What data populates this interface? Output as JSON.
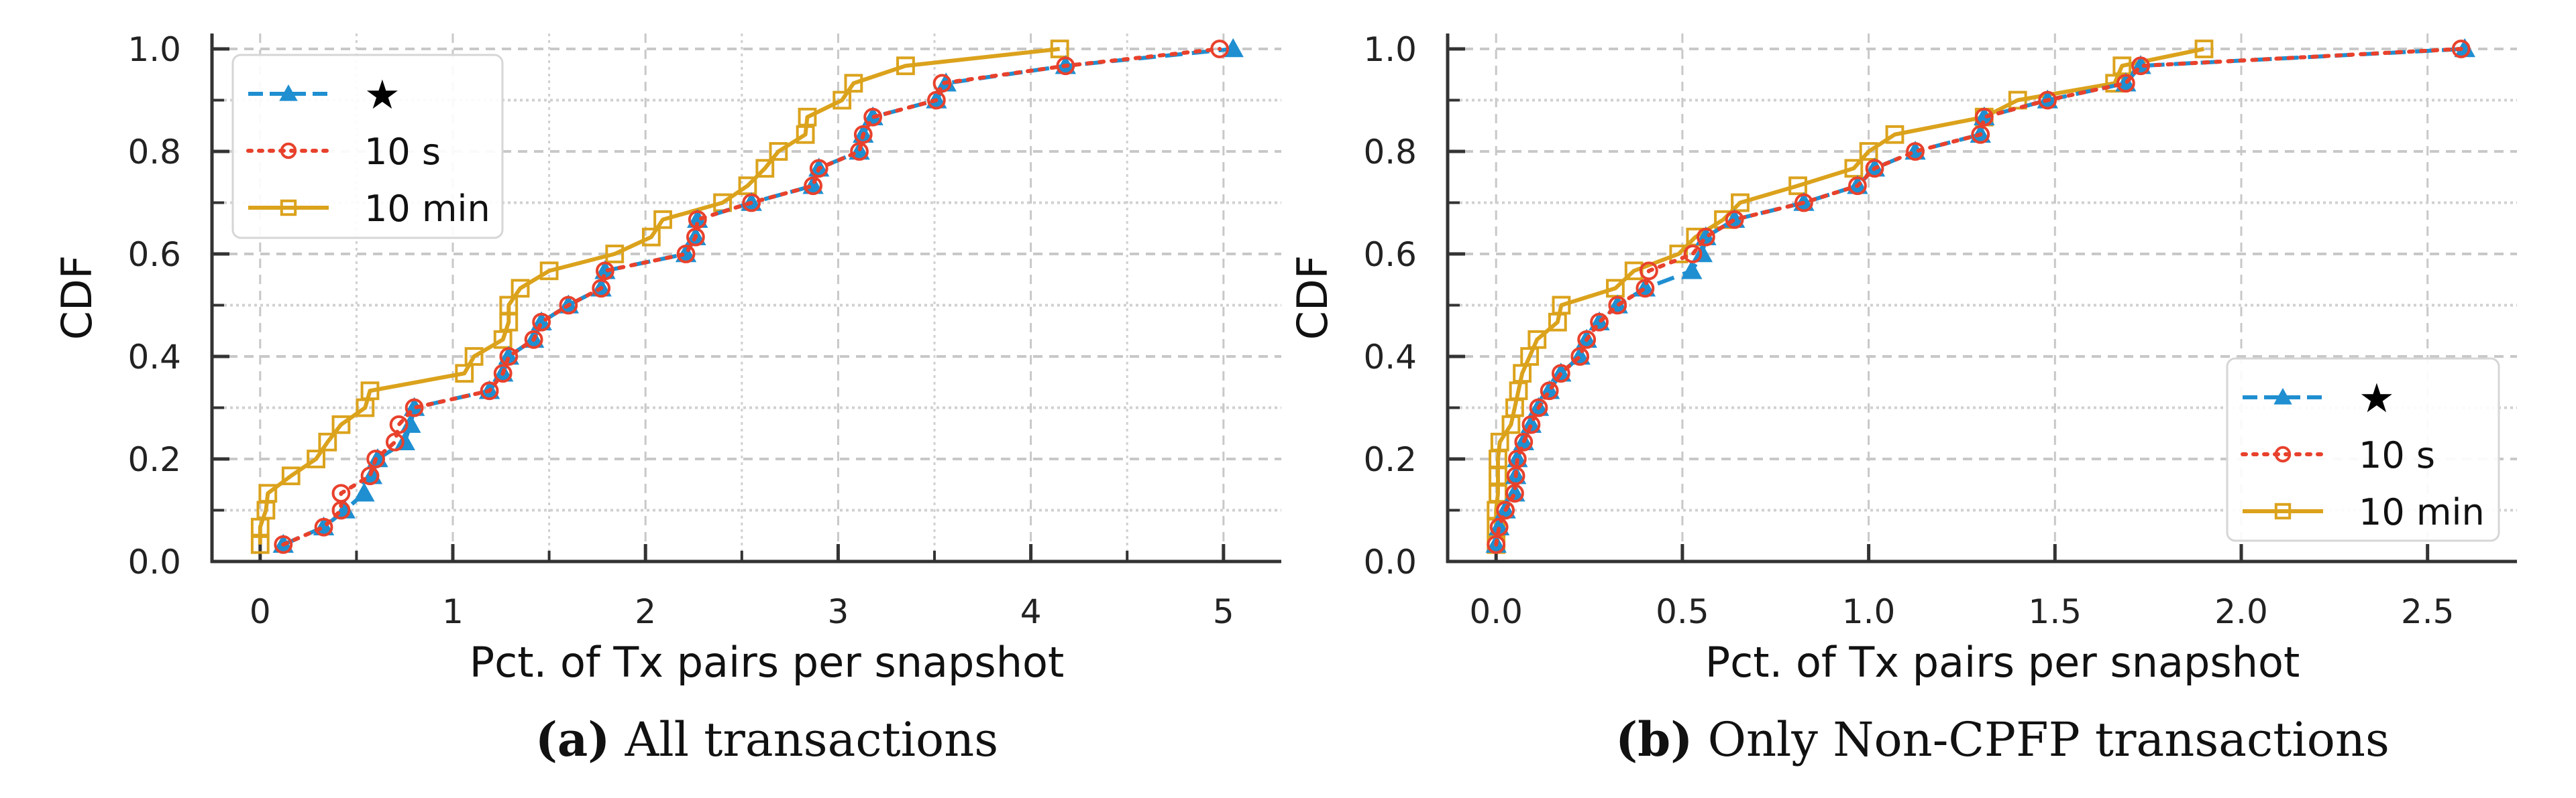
{
  "chart_data": [
    {
      "type": "line",
      "id": "a",
      "caption_bold": "(a)",
      "caption_text": " All transactions",
      "xlabel": "Pct. of Tx pairs per snapshot",
      "ylabel": "CDF",
      "xlim": [
        -0.25,
        5.3
      ],
      "ylim": [
        0.0,
        1.0
      ],
      "xticks": [
        0,
        1,
        2,
        3,
        4,
        5
      ],
      "xtick_labels": [
        "0",
        "1",
        "2",
        "3",
        "4",
        "5"
      ],
      "xminor": [
        0.5,
        1.5,
        2.5,
        3.5,
        4.5
      ],
      "yticks": [
        0.0,
        0.2,
        0.4,
        0.6,
        0.8,
        1.0
      ],
      "ytick_labels": [
        "0.0",
        "0.2",
        "0.4",
        "0.6",
        "0.8",
        "1.0"
      ],
      "yminor": [
        0.1,
        0.3,
        0.5,
        0.7,
        0.9
      ],
      "grid": true,
      "legend_position": "top-left",
      "series": [
        {
          "name": "★",
          "color": "#1f8fd1",
          "linestyle": "dashed",
          "marker": "triangle",
          "x": [
            0.12,
            0.33,
            0.44,
            0.54,
            0.58,
            0.61,
            0.75,
            0.78,
            0.8,
            1.19,
            1.26,
            1.29,
            1.42,
            1.46,
            1.6,
            1.77,
            1.79,
            2.21,
            2.26,
            2.27,
            2.55,
            2.87,
            2.9,
            3.11,
            3.13,
            3.18,
            3.51,
            3.56,
            4.18,
            5.05
          ],
          "y": [
            0.033,
            0.067,
            0.1,
            0.133,
            0.167,
            0.2,
            0.233,
            0.267,
            0.3,
            0.333,
            0.367,
            0.4,
            0.433,
            0.467,
            0.5,
            0.533,
            0.567,
            0.6,
            0.633,
            0.667,
            0.7,
            0.733,
            0.767,
            0.8,
            0.833,
            0.867,
            0.9,
            0.933,
            0.967,
            1.0
          ]
        },
        {
          "name": "10 s",
          "color": "#e8412c",
          "linestyle": "dotted",
          "marker": "circle",
          "x": [
            0.12,
            0.33,
            0.42,
            0.42,
            0.57,
            0.6,
            0.7,
            0.72,
            0.8,
            1.19,
            1.26,
            1.29,
            1.42,
            1.46,
            1.6,
            1.77,
            1.79,
            2.21,
            2.26,
            2.27,
            2.55,
            2.87,
            2.9,
            3.11,
            3.13,
            3.18,
            3.51,
            3.54,
            4.18,
            4.98
          ],
          "y": [
            0.033,
            0.067,
            0.1,
            0.133,
            0.167,
            0.2,
            0.233,
            0.267,
            0.3,
            0.333,
            0.367,
            0.4,
            0.433,
            0.467,
            0.5,
            0.533,
            0.567,
            0.6,
            0.633,
            0.667,
            0.7,
            0.733,
            0.767,
            0.8,
            0.833,
            0.867,
            0.9,
            0.933,
            0.967,
            1.0
          ]
        },
        {
          "name": "10 min",
          "color": "#dba21c",
          "linestyle": "solid",
          "marker": "square",
          "x": [
            0.0,
            0.0,
            0.03,
            0.04,
            0.16,
            0.29,
            0.35,
            0.42,
            0.545,
            0.57,
            1.06,
            1.11,
            1.26,
            1.29,
            1.29,
            1.35,
            1.5,
            1.84,
            2.03,
            2.09,
            2.4,
            2.53,
            2.62,
            2.69,
            2.83,
            2.84,
            3.02,
            3.08,
            3.35,
            4.15
          ],
          "y": [
            0.033,
            0.067,
            0.1,
            0.133,
            0.167,
            0.2,
            0.233,
            0.267,
            0.3,
            0.333,
            0.367,
            0.4,
            0.433,
            0.467,
            0.5,
            0.533,
            0.567,
            0.6,
            0.633,
            0.667,
            0.7,
            0.733,
            0.767,
            0.8,
            0.833,
            0.867,
            0.9,
            0.933,
            0.967,
            1.0
          ]
        }
      ]
    },
    {
      "type": "line",
      "id": "b",
      "caption_bold": "(b)",
      "caption_text": " Only Non-CPFP transactions",
      "xlabel": "Pct. of Tx pairs per snapshot",
      "ylabel": "CDF",
      "xlim": [
        -0.13,
        2.74
      ],
      "ylim": [
        0.0,
        1.0
      ],
      "xticks": [
        0.0,
        0.5,
        1.0,
        1.5,
        2.0,
        2.5
      ],
      "xtick_labels": [
        "0.0",
        "0.5",
        "1.0",
        "1.5",
        "2.0",
        "2.5"
      ],
      "xminor": [],
      "yticks": [
        0.0,
        0.2,
        0.4,
        0.6,
        0.8,
        1.0
      ],
      "ytick_labels": [
        "0.0",
        "0.2",
        "0.4",
        "0.6",
        "0.8",
        "1.0"
      ],
      "yminor": [
        0.1,
        0.3,
        0.5,
        0.7,
        0.9
      ],
      "grid": true,
      "legend_position": "bottom-right",
      "series": [
        {
          "name": "★",
          "color": "#1f8fd1",
          "linestyle": "dashed",
          "marker": "triangle",
          "x": [
            0.0,
            0.008,
            0.025,
            0.05,
            0.053,
            0.057,
            0.074,
            0.094,
            0.114,
            0.143,
            0.174,
            0.225,
            0.243,
            0.277,
            0.326,
            0.4,
            0.525,
            0.553,
            0.563,
            0.64,
            0.826,
            0.97,
            1.016,
            1.125,
            1.3,
            1.31,
            1.48,
            1.69,
            1.73,
            2.6
          ],
          "y": [
            0.033,
            0.067,
            0.1,
            0.133,
            0.167,
            0.2,
            0.233,
            0.267,
            0.3,
            0.333,
            0.367,
            0.4,
            0.433,
            0.467,
            0.5,
            0.533,
            0.567,
            0.6,
            0.633,
            0.667,
            0.7,
            0.733,
            0.767,
            0.8,
            0.833,
            0.867,
            0.9,
            0.933,
            0.967,
            1.0
          ]
        },
        {
          "name": "10 s",
          "color": "#e8412c",
          "linestyle": "dotted",
          "marker": "circle",
          "x": [
            0.0,
            0.008,
            0.025,
            0.05,
            0.053,
            0.057,
            0.074,
            0.094,
            0.114,
            0.143,
            0.174,
            0.225,
            0.243,
            0.277,
            0.326,
            0.4,
            0.41,
            0.528,
            0.563,
            0.64,
            0.826,
            0.97,
            1.016,
            1.125,
            1.3,
            1.31,
            1.48,
            1.69,
            1.73,
            2.59
          ],
          "y": [
            0.033,
            0.067,
            0.1,
            0.133,
            0.167,
            0.2,
            0.233,
            0.267,
            0.3,
            0.333,
            0.367,
            0.4,
            0.433,
            0.467,
            0.5,
            0.533,
            0.567,
            0.6,
            0.633,
            0.667,
            0.7,
            0.733,
            0.767,
            0.8,
            0.833,
            0.867,
            0.9,
            0.933,
            0.967,
            1.0
          ]
        },
        {
          "name": "10 min",
          "color": "#dba21c",
          "linestyle": "solid",
          "marker": "square",
          "x": [
            0.0,
            0.0,
            0.0,
            0.005,
            0.005,
            0.005,
            0.01,
            0.04,
            0.05,
            0.06,
            0.07,
            0.09,
            0.11,
            0.165,
            0.175,
            0.32,
            0.37,
            0.49,
            0.535,
            0.61,
            0.655,
            0.81,
            0.96,
            1.0,
            1.07,
            1.31,
            1.4,
            1.66,
            1.68,
            1.9
          ],
          "y": [
            0.033,
            0.067,
            0.1,
            0.133,
            0.167,
            0.2,
            0.233,
            0.267,
            0.3,
            0.333,
            0.367,
            0.4,
            0.433,
            0.467,
            0.5,
            0.533,
            0.567,
            0.6,
            0.633,
            0.667,
            0.7,
            0.733,
            0.767,
            0.8,
            0.833,
            0.867,
            0.9,
            0.933,
            0.967,
            1.0
          ]
        }
      ]
    }
  ]
}
